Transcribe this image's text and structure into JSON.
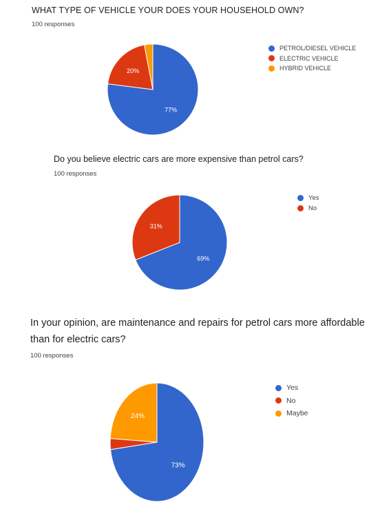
{
  "chart_data": [
    {
      "type": "pie",
      "title": "WHAT TYPE OF VEHICLE YOUR DOES YOUR HOUSEHOLD OWN?",
      "subtitle": "100 responses",
      "categories": [
        "PETROL/DIESEL VEHICLE",
        "ELECTRIC VEHICLE",
        "HYBRID VEHICLE"
      ],
      "values": [
        77,
        20,
        3
      ],
      "data_labels": [
        "77%",
        "20%",
        ""
      ],
      "colors": [
        "#3366cc",
        "#dc3912",
        "#ff9900"
      ],
      "legend": "right"
    },
    {
      "type": "pie",
      "title": "Do you believe electric cars are more expensive than petrol cars?",
      "subtitle": "100 responses",
      "categories": [
        "Yes",
        "No"
      ],
      "values": [
        69,
        31
      ],
      "data_labels": [
        "69%",
        "31%"
      ],
      "colors": [
        "#3366cc",
        "#dc3912"
      ],
      "legend": "right"
    },
    {
      "type": "pie",
      "title": "In your opinion, are maintenance and repairs for petrol cars more affordable than for electric cars?",
      "subtitle": "100 responses",
      "categories": [
        "Yes",
        "No",
        "Maybe"
      ],
      "values": [
        73,
        3,
        24
      ],
      "data_labels": [
        "73%",
        "",
        "24%"
      ],
      "colors": [
        "#3366cc",
        "#dc3912",
        "#ff9900"
      ],
      "legend": "right"
    }
  ]
}
